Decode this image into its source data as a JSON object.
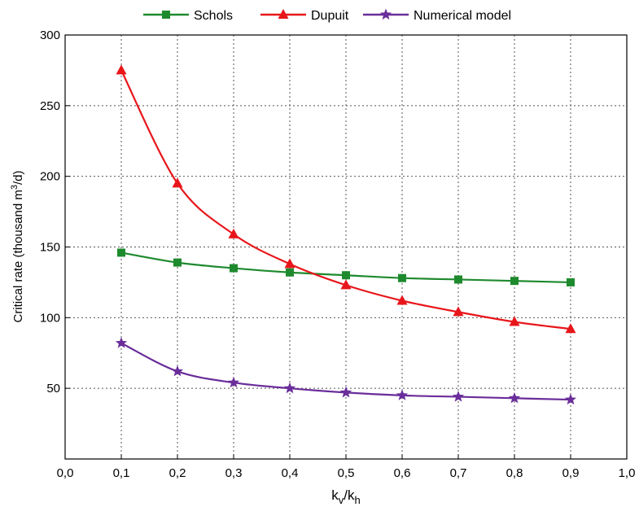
{
  "chart_data": {
    "type": "line",
    "title": "",
    "xlabel_main": "k",
    "xlabel_sub1": "v",
    "xlabel_sep": "/k",
    "xlabel_sub2": "h",
    "ylabel_pre": "Critical rate (thousand m",
    "ylabel_sup": "3",
    "ylabel_post": "/d)",
    "xlim": [
      0.0,
      1.0
    ],
    "ylim": [
      0,
      300
    ],
    "x_ticks": [
      0.0,
      0.1,
      0.2,
      0.3,
      0.4,
      0.5,
      0.6,
      0.7,
      0.8,
      0.9,
      1.0
    ],
    "x_tick_labels": [
      "0,0",
      "0,1",
      "0,2",
      "0,3",
      "0,4",
      "0,5",
      "0,6",
      "0,7",
      "0,8",
      "0,9",
      "1,0"
    ],
    "y_ticks": [
      50,
      100,
      150,
      200,
      250,
      300
    ],
    "y_tick_labels": [
      "50",
      "100",
      "150",
      "200",
      "250",
      "300"
    ],
    "grid": true,
    "legend_position": "top-center",
    "x": [
      0.1,
      0.2,
      0.3,
      0.4,
      0.5,
      0.6,
      0.7,
      0.8,
      0.9
    ],
    "series": [
      {
        "name": "Schols",
        "color": "#1e8a2e",
        "marker": "square",
        "values": [
          146,
          139,
          135,
          132,
          130,
          128,
          127,
          126,
          125
        ]
      },
      {
        "name": "Dupuit",
        "color": "#e8161b",
        "marker": "triangle",
        "values": [
          275,
          195,
          159,
          138,
          123,
          112,
          104,
          97,
          92
        ]
      },
      {
        "name": "Numerical model",
        "color": "#6a2d9a",
        "marker": "star",
        "values": [
          82,
          62,
          54,
          50,
          47,
          45,
          44,
          43,
          42
        ]
      }
    ]
  }
}
